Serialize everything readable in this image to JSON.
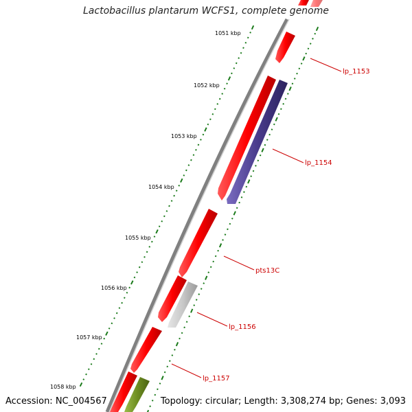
{
  "title": "Lactobacillus plantarum WCFS1, complete genome",
  "footer": {
    "accession": "Accession: NC_004567",
    "summary": "Topology: circular; Length: 3,308,274 bp; Genes: 3,093"
  },
  "colors": {
    "forward_cds": "#ff0000",
    "reverse_cds": "#4a3c8c",
    "grey_cds": "#c8c8c8",
    "olive_cds": "#6f8f22",
    "tick": "#1a7a1a",
    "label": "#cc0000",
    "backbone": "#808080"
  },
  "scale_labels": [
    {
      "text": "1051 kbp"
    },
    {
      "text": "1052 kbp"
    },
    {
      "text": "1053 kbp"
    },
    {
      "text": "1054 kbp"
    },
    {
      "text": "1055 kbp"
    },
    {
      "text": "1056 kbp"
    },
    {
      "text": "1057 kbp"
    },
    {
      "text": "1058 kbp"
    }
  ],
  "gene_labels": [
    {
      "text": "lp_1153"
    },
    {
      "text": "lp_1154"
    },
    {
      "text": "pts13C"
    },
    {
      "text": "lp_1156"
    },
    {
      "text": "lp_1157"
    }
  ]
}
